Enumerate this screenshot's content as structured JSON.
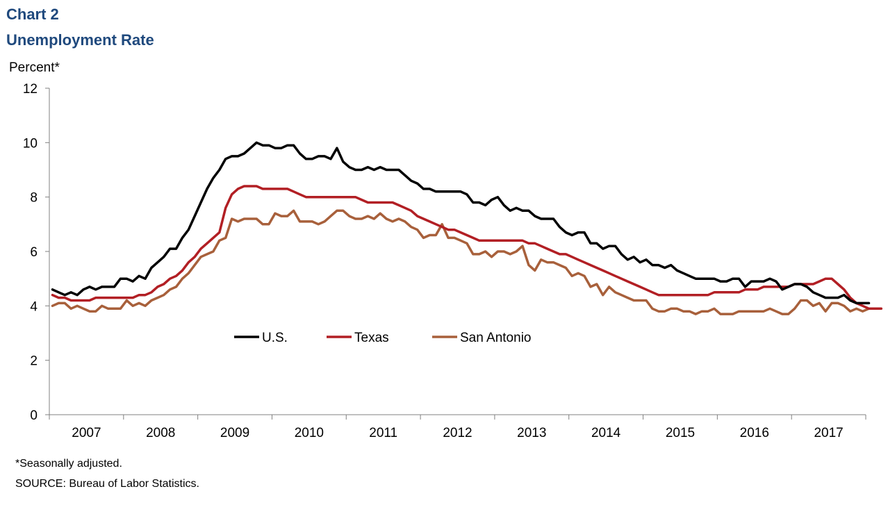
{
  "chart_data": {
    "type": "line",
    "title": "Chart 2",
    "subtitle": "Unemployment  Rate",
    "ylabel": "Percent*",
    "xlabel": "",
    "ylim": [
      0,
      12
    ],
    "yticks": [
      0,
      2,
      4,
      6,
      8,
      10,
      12
    ],
    "x_start": 2007.0,
    "x_step_months": 1,
    "year_labels": [
      "2007",
      "2008",
      "2009",
      "2010",
      "2011",
      "2012",
      "2013",
      "2014",
      "2015",
      "2016",
      "2017"
    ],
    "legend_position": "center",
    "series": [
      {
        "name": "U.S.",
        "color": "#000000",
        "values": [
          4.6,
          4.5,
          4.4,
          4.5,
          4.4,
          4.6,
          4.7,
          4.6,
          4.7,
          4.7,
          4.7,
          5.0,
          5.0,
          4.9,
          5.1,
          5.0,
          5.4,
          5.6,
          5.8,
          6.1,
          6.1,
          6.5,
          6.8,
          7.3,
          7.8,
          8.3,
          8.7,
          9.0,
          9.4,
          9.5,
          9.5,
          9.6,
          9.8,
          10.0,
          9.9,
          9.9,
          9.8,
          9.8,
          9.9,
          9.9,
          9.6,
          9.4,
          9.4,
          9.5,
          9.5,
          9.4,
          9.8,
          9.3,
          9.1,
          9.0,
          9.0,
          9.1,
          9.0,
          9.1,
          9.0,
          9.0,
          9.0,
          8.8,
          8.6,
          8.5,
          8.3,
          8.3,
          8.2,
          8.2,
          8.2,
          8.2,
          8.2,
          8.1,
          7.8,
          7.8,
          7.7,
          7.9,
          8.0,
          7.7,
          7.5,
          7.6,
          7.5,
          7.5,
          7.3,
          7.2,
          7.2,
          7.2,
          6.9,
          6.7,
          6.6,
          6.7,
          6.7,
          6.3,
          6.3,
          6.1,
          6.2,
          6.2,
          5.9,
          5.7,
          5.8,
          5.6,
          5.7,
          5.5,
          5.5,
          5.4,
          5.5,
          5.3,
          5.2,
          5.1,
          5.0,
          5.0,
          5.0,
          5.0,
          4.9,
          4.9,
          5.0,
          5.0,
          4.7,
          4.9,
          4.9,
          4.9,
          5.0,
          4.9,
          4.6,
          4.7,
          4.8,
          4.8,
          4.7,
          4.5,
          4.4,
          4.3,
          4.3,
          4.3,
          4.4,
          4.2,
          4.1,
          4.1,
          4.1
        ]
      },
      {
        "name": "Texas",
        "color": "#b21f24",
        "values": [
          4.4,
          4.3,
          4.3,
          4.2,
          4.2,
          4.2,
          4.2,
          4.3,
          4.3,
          4.3,
          4.3,
          4.3,
          4.3,
          4.3,
          4.4,
          4.4,
          4.5,
          4.7,
          4.8,
          5.0,
          5.1,
          5.3,
          5.6,
          5.8,
          6.1,
          6.3,
          6.5,
          6.7,
          7.6,
          8.1,
          8.3,
          8.4,
          8.4,
          8.4,
          8.3,
          8.3,
          8.3,
          8.3,
          8.3,
          8.2,
          8.1,
          8.0,
          8.0,
          8.0,
          8.0,
          8.0,
          8.0,
          8.0,
          8.0,
          8.0,
          7.9,
          7.8,
          7.8,
          7.8,
          7.8,
          7.8,
          7.7,
          7.6,
          7.5,
          7.3,
          7.2,
          7.1,
          7.0,
          6.9,
          6.8,
          6.8,
          6.7,
          6.6,
          6.5,
          6.4,
          6.4,
          6.4,
          6.4,
          6.4,
          6.4,
          6.4,
          6.4,
          6.3,
          6.3,
          6.2,
          6.1,
          6.0,
          5.9,
          5.9,
          5.8,
          5.7,
          5.6,
          5.5,
          5.4,
          5.3,
          5.2,
          5.1,
          5.0,
          4.9,
          4.8,
          4.7,
          4.6,
          4.5,
          4.4,
          4.4,
          4.4,
          4.4,
          4.4,
          4.4,
          4.4,
          4.4,
          4.4,
          4.5,
          4.5,
          4.5,
          4.5,
          4.5,
          4.6,
          4.6,
          4.6,
          4.7,
          4.7,
          4.7,
          4.7,
          4.7,
          4.8,
          4.8,
          4.8,
          4.8,
          4.9,
          5.0,
          5.0,
          4.8,
          4.6,
          4.3,
          4.1,
          4.0,
          3.9,
          3.9,
          3.9
        ]
      },
      {
        "name": "San Antonio",
        "color": "#a8603b",
        "values": [
          4.0,
          4.1,
          4.1,
          3.9,
          4.0,
          3.9,
          3.8,
          3.8,
          4.0,
          3.9,
          3.9,
          3.9,
          4.2,
          4.0,
          4.1,
          4.0,
          4.2,
          4.3,
          4.4,
          4.6,
          4.7,
          5.0,
          5.2,
          5.5,
          5.8,
          5.9,
          6.0,
          6.4,
          6.5,
          7.2,
          7.1,
          7.2,
          7.2,
          7.2,
          7.0,
          7.0,
          7.4,
          7.3,
          7.3,
          7.5,
          7.1,
          7.1,
          7.1,
          7.0,
          7.1,
          7.3,
          7.5,
          7.5,
          7.3,
          7.2,
          7.2,
          7.3,
          7.2,
          7.4,
          7.2,
          7.1,
          7.2,
          7.1,
          6.9,
          6.8,
          6.5,
          6.6,
          6.6,
          7.0,
          6.5,
          6.5,
          6.4,
          6.3,
          5.9,
          5.9,
          6.0,
          5.8,
          6.0,
          6.0,
          5.9,
          6.0,
          6.2,
          5.5,
          5.3,
          5.7,
          5.6,
          5.6,
          5.5,
          5.4,
          5.1,
          5.2,
          5.1,
          4.7,
          4.8,
          4.4,
          4.7,
          4.5,
          4.4,
          4.3,
          4.2,
          4.2,
          4.2,
          3.9,
          3.8,
          3.8,
          3.9,
          3.9,
          3.8,
          3.8,
          3.7,
          3.8,
          3.8,
          3.9,
          3.7,
          3.7,
          3.7,
          3.8,
          3.8,
          3.8,
          3.8,
          3.8,
          3.9,
          3.8,
          3.7,
          3.7,
          3.9,
          4.2,
          4.2,
          4.0,
          4.1,
          3.8,
          4.1,
          4.1,
          4.0,
          3.8,
          3.9,
          3.8,
          3.9
        ]
      }
    ]
  },
  "footnote": "*Seasonally adjusted.",
  "source": "SOURCE: Bureau of Labor Statistics."
}
